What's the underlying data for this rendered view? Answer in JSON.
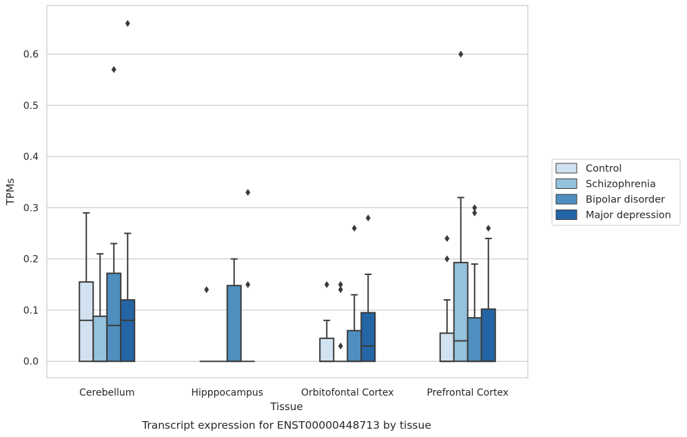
{
  "chart_data": {
    "type": "box",
    "xlabel": "Tissue",
    "ylabel": "TPMs",
    "caption": "Transcript expression for ENST00000448713 by tissue",
    "ylim": [
      -0.032,
      0.695
    ],
    "yticks": [
      "0.0",
      "0.1",
      "0.2",
      "0.3",
      "0.4",
      "0.5",
      "0.6"
    ],
    "grid": "horizontal",
    "legend_position": "right",
    "categories": [
      "Cerebellum",
      "Hipppocampus",
      "Orbitofontal Cortex",
      "Prefrontal Cortex"
    ],
    "series": [
      {
        "name": "Control",
        "color": "#d2e2f0",
        "boxes": [
          {
            "q1": 0.0,
            "median": 0.08,
            "q3": 0.155,
            "whisker_low": 0.0,
            "whisker_high": 0.29,
            "outliers": []
          },
          {
            "q1": 0.0,
            "median": 0.0,
            "q3": 0.0,
            "whisker_low": 0.0,
            "whisker_high": 0.0,
            "outliers": [
              0.14
            ]
          },
          {
            "q1": 0.0,
            "median": 0.0,
            "q3": 0.045,
            "whisker_low": 0.0,
            "whisker_high": 0.08,
            "outliers": [
              0.15
            ]
          },
          {
            "q1": 0.0,
            "median": 0.0,
            "q3": 0.055,
            "whisker_low": 0.0,
            "whisker_high": 0.12,
            "outliers": [
              0.2,
              0.24
            ]
          }
        ]
      },
      {
        "name": "Schizophrenia",
        "color": "#94c1db",
        "boxes": [
          {
            "q1": 0.0,
            "median": 0.0,
            "q3": 0.088,
            "whisker_low": 0.0,
            "whisker_high": 0.21,
            "outliers": []
          },
          {
            "q1": 0.0,
            "median": 0.0,
            "q3": 0.0,
            "whisker_low": 0.0,
            "whisker_high": 0.0,
            "outliers": []
          },
          {
            "q1": 0.0,
            "median": 0.0,
            "q3": 0.0,
            "whisker_low": 0.0,
            "whisker_high": 0.0,
            "outliers": [
              0.03,
              0.14,
              0.15
            ]
          },
          {
            "q1": 0.0,
            "median": 0.04,
            "q3": 0.193,
            "whisker_low": 0.0,
            "whisker_high": 0.32,
            "outliers": [
              0.6
            ]
          }
        ]
      },
      {
        "name": "Bipolar disorder",
        "color": "#4f8fbf",
        "boxes": [
          {
            "q1": 0.0,
            "median": 0.07,
            "q3": 0.172,
            "whisker_low": 0.0,
            "whisker_high": 0.23,
            "outliers": [
              0.57
            ]
          },
          {
            "q1": 0.0,
            "median": 0.0,
            "q3": 0.148,
            "whisker_low": 0.0,
            "whisker_high": 0.2,
            "outliers": []
          },
          {
            "q1": 0.0,
            "median": 0.0,
            "q3": 0.06,
            "whisker_low": 0.0,
            "whisker_high": 0.13,
            "outliers": [
              0.26
            ]
          },
          {
            "q1": 0.0,
            "median": 0.0,
            "q3": 0.085,
            "whisker_low": 0.0,
            "whisker_high": 0.19,
            "outliers": [
              0.29,
              0.3
            ]
          }
        ]
      },
      {
        "name": "Major depression",
        "color": "#2465a6",
        "boxes": [
          {
            "q1": 0.0,
            "median": 0.08,
            "q3": 0.12,
            "whisker_low": 0.0,
            "whisker_high": 0.25,
            "outliers": [
              0.66
            ]
          },
          {
            "q1": 0.0,
            "median": 0.0,
            "q3": 0.0,
            "whisker_low": 0.0,
            "whisker_high": 0.0,
            "outliers": [
              0.15,
              0.33
            ]
          },
          {
            "q1": 0.0,
            "median": 0.03,
            "q3": 0.095,
            "whisker_low": 0.0,
            "whisker_high": 0.17,
            "outliers": [
              0.28
            ]
          },
          {
            "q1": 0.0,
            "median": 0.0,
            "q3": 0.102,
            "whisker_low": 0.0,
            "whisker_high": 0.24,
            "outliers": [
              0.26
            ]
          }
        ]
      }
    ]
  }
}
